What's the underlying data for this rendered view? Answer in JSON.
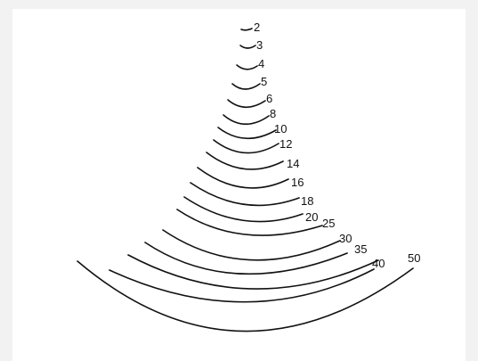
{
  "sweeps": [
    {
      "label": "2"
    },
    {
      "label": "3"
    },
    {
      "label": "4"
    },
    {
      "label": "5"
    },
    {
      "label": "6"
    },
    {
      "label": "8"
    },
    {
      "label": "10"
    },
    {
      "label": "12"
    },
    {
      "label": "14"
    },
    {
      "label": "16"
    },
    {
      "label": "18"
    },
    {
      "label": "20"
    },
    {
      "label": "25"
    },
    {
      "label": "30"
    },
    {
      "label": "35"
    },
    {
      "label": "40"
    },
    {
      "label": "50"
    }
  ]
}
